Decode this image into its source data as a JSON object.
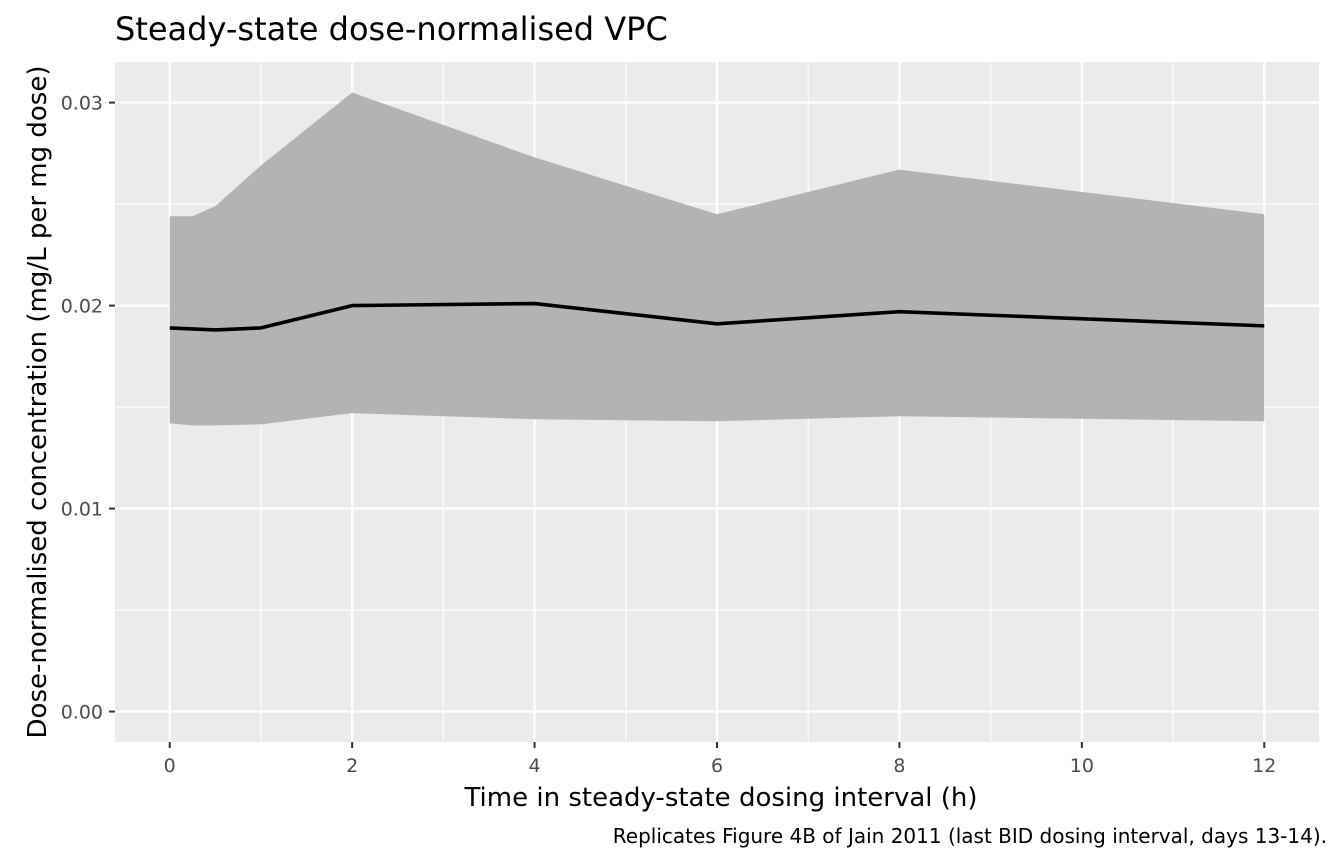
{
  "chart_data": {
    "type": "area",
    "title": "Steady-state dose-normalised VPC",
    "xlabel": "Time in steady-state dosing interval (h)",
    "ylabel": "Dose-normalised concentration (mg/L per mg dose)",
    "caption": "Replicates Figure 4B of Jain 2011 (last BID dosing interval, days 13-14).",
    "xlim": [
      -0.6,
      12.6
    ],
    "ylim": [
      -0.0015,
      0.032
    ],
    "x_ticks": [
      0,
      2,
      4,
      6,
      8,
      10,
      12
    ],
    "x_tick_labels": [
      "0",
      "2",
      "4",
      "6",
      "8",
      "10",
      "12"
    ],
    "y_ticks": [
      0,
      0.01,
      0.02,
      0.03
    ],
    "y_tick_labels": [
      "0.00",
      "0.01",
      "0.02",
      "0.03"
    ],
    "grid": true,
    "band": {
      "x": [
        0,
        0.25,
        0.5,
        1,
        2,
        4,
        6,
        8,
        12
      ],
      "lower": [
        0.0142,
        0.0141,
        0.0141,
        0.01415,
        0.0147,
        0.0144,
        0.0143,
        0.01455,
        0.0143
      ],
      "upper": [
        0.0244,
        0.0244,
        0.0249,
        0.0269,
        0.0305,
        0.0273,
        0.0245,
        0.0267,
        0.0245
      ],
      "color": "#b3b3b3"
    },
    "series": [
      {
        "x": [
          0,
          0.5,
          1,
          2,
          4,
          6,
          8,
          12
        ],
        "values": [
          0.0189,
          0.0188,
          0.0189,
          0.02,
          0.0201,
          0.0191,
          0.0197,
          0.019
        ],
        "color": "#000000"
      }
    ]
  },
  "colors": {
    "panel": "#ebebeb",
    "grid": "#ffffff",
    "tick_text": "#4d4d4d",
    "tick_mark": "#333333"
  }
}
